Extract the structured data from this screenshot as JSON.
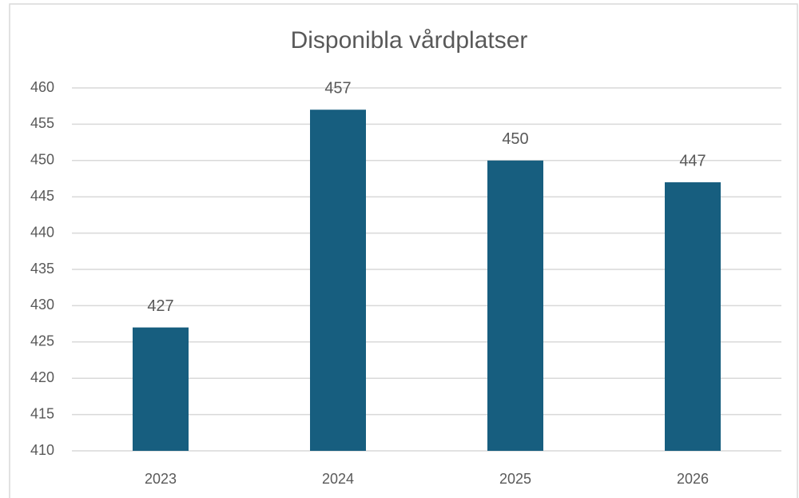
{
  "chart_data": {
    "type": "bar",
    "title": "Disponibla vårdplatser",
    "categories": [
      "2023",
      "2024",
      "2025",
      "2026"
    ],
    "values": [
      427,
      457,
      450,
      447
    ],
    "color": "#175e7f",
    "ylim": [
      410,
      460
    ],
    "yticks": [
      410,
      415,
      420,
      425,
      430,
      435,
      440,
      445,
      450,
      455,
      460
    ],
    "grid": true
  }
}
